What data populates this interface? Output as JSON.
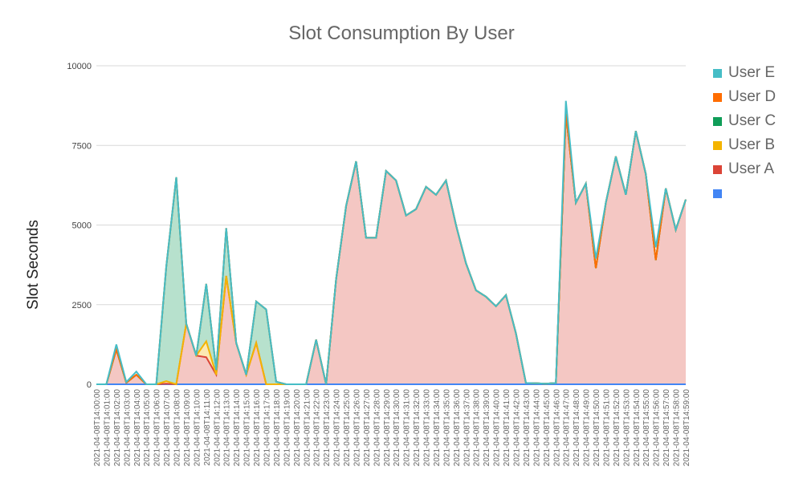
{
  "chart_data": {
    "type": "area",
    "stacked": true,
    "title": "Slot Consumption By User",
    "xlabel": "",
    "ylabel": "Slot Seconds",
    "ylim": [
      0,
      10000
    ],
    "yticks": [
      0,
      2500,
      5000,
      7500,
      10000
    ],
    "grid": true,
    "legend_position": "right",
    "categories": [
      "2021-04-08T14:00:00",
      "2021-04-08T14:01:00",
      "2021-04-08T14:02:00",
      "2021-04-08T14:03:00",
      "2021-04-08T14:04:00",
      "2021-04-08T14:05:00",
      "2021-04-08T14:06:00",
      "2021-04-08T14:07:00",
      "2021-04-08T14:08:00",
      "2021-04-08T14:09:00",
      "2021-04-08T14:10:00",
      "2021-04-08T14:11:00",
      "2021-04-08T14:12:00",
      "2021-04-08T14:13:00",
      "2021-04-08T14:14:00",
      "2021-04-08T14:15:00",
      "2021-04-08T14:16:00",
      "2021-04-08T14:17:00",
      "2021-04-08T14:18:00",
      "2021-04-08T14:19:00",
      "2021-04-08T14:20:00",
      "2021-04-08T14:21:00",
      "2021-04-08T14:22:00",
      "2021-04-08T14:23:00",
      "2021-04-08T14:24:00",
      "2021-04-08T14:25:00",
      "2021-04-08T14:26:00",
      "2021-04-08T14:27:00",
      "2021-04-08T14:28:00",
      "2021-04-08T14:29:00",
      "2021-04-08T14:30:00",
      "2021-04-08T14:31:00",
      "2021-04-08T14:32:00",
      "2021-04-08T14:33:00",
      "2021-04-08T14:34:00",
      "2021-04-08T14:35:00",
      "2021-04-08T14:36:00",
      "2021-04-08T14:37:00",
      "2021-04-08T14:38:00",
      "2021-04-08T14:39:00",
      "2021-04-08T14:40:00",
      "2021-04-08T14:41:00",
      "2021-04-08T14:42:00",
      "2021-04-08T14:43:00",
      "2021-04-08T14:44:00",
      "2021-04-08T14:45:00",
      "2021-04-08T14:46:00",
      "2021-04-08T14:47:00",
      "2021-04-08T14:48:00",
      "2021-04-08T14:49:00",
      "2021-04-08T14:50:00",
      "2021-04-08T14:51:00",
      "2021-04-08T14:52:00",
      "2021-04-08T14:53:00",
      "2021-04-08T14:54:00",
      "2021-04-08T14:55:00",
      "2021-04-08T14:56:00",
      "2021-04-08T14:57:00",
      "2021-04-08T14:58:00",
      "2021-04-08T14:59:00"
    ],
    "series": [
      {
        "name": "",
        "color": "#4285f4",
        "values": [
          0,
          0,
          0,
          0,
          0,
          0,
          0,
          0,
          0,
          0,
          0,
          0,
          0,
          0,
          0,
          0,
          0,
          0,
          0,
          0,
          0,
          0,
          0,
          0,
          0,
          0,
          0,
          0,
          0,
          0,
          0,
          0,
          0,
          0,
          0,
          0,
          0,
          0,
          0,
          0,
          0,
          0,
          0,
          0,
          0,
          0,
          0,
          0,
          0,
          0,
          0,
          0,
          0,
          0,
          0,
          0,
          0,
          0,
          0,
          0
        ]
      },
      {
        "name": "User A",
        "color": "#db4437",
        "fill": "#f4c7c3",
        "values": [
          0,
          0,
          1100,
          50,
          300,
          0,
          0,
          20,
          0,
          1900,
          900,
          850,
          300,
          3400,
          1300,
          300,
          1300,
          0,
          0,
          0,
          0,
          0,
          1400,
          0,
          3300,
          5600,
          7000,
          4600,
          4600,
          6700,
          6400,
          5300,
          5500,
          6200,
          5950,
          6400,
          5000,
          3800,
          2950,
          2750,
          2450,
          2800,
          1600,
          40,
          30,
          20,
          40,
          8500,
          5700,
          6300,
          3650,
          5700,
          7150,
          5950,
          7950,
          6600,
          3900,
          6150,
          4850,
          5800
        ]
      },
      {
        "name": "User B",
        "color": "#f4b400",
        "fill": "#fce8b2",
        "values": [
          0,
          0,
          0,
          0,
          0,
          0,
          0,
          80,
          0,
          0,
          0,
          500,
          0,
          0,
          0,
          0,
          0,
          0,
          0,
          0,
          0,
          0,
          0,
          0,
          0,
          0,
          0,
          0,
          0,
          0,
          0,
          0,
          0,
          0,
          0,
          0,
          0,
          0,
          0,
          0,
          0,
          0,
          0,
          0,
          0,
          0,
          0,
          0,
          0,
          0,
          0,
          0,
          0,
          0,
          0,
          0,
          0,
          0,
          0,
          0
        ]
      },
      {
        "name": "User C",
        "color": "#0f9d58",
        "fill": "#b7e1cd",
        "values": [
          0,
          0,
          0,
          0,
          0,
          0,
          0,
          3600,
          6500,
          0,
          0,
          1800,
          150,
          1500,
          0,
          0,
          1300,
          2350,
          80,
          0,
          0,
          0,
          0,
          0,
          0,
          0,
          0,
          0,
          0,
          0,
          0,
          0,
          0,
          0,
          0,
          0,
          0,
          0,
          0,
          0,
          0,
          0,
          0,
          0,
          0,
          0,
          0,
          0,
          0,
          0,
          0,
          0,
          0,
          0,
          0,
          0,
          0,
          0,
          0,
          0
        ]
      },
      {
        "name": "User D",
        "color": "#ff6d01",
        "values": [
          0,
          0,
          0,
          0,
          0,
          0,
          0,
          0,
          0,
          0,
          0,
          0,
          0,
          0,
          0,
          0,
          0,
          0,
          0,
          0,
          0,
          0,
          0,
          0,
          0,
          0,
          0,
          0,
          0,
          0,
          0,
          0,
          0,
          0,
          0,
          0,
          0,
          0,
          0,
          0,
          0,
          0,
          0,
          0,
          0,
          0,
          0,
          0,
          0,
          0,
          0,
          0,
          0,
          0,
          0,
          0,
          0,
          0,
          0,
          0
        ]
      },
      {
        "name": "User E",
        "color": "#46bdc6",
        "values": [
          0,
          0,
          150,
          20,
          100,
          0,
          0,
          0,
          0,
          0,
          0,
          0,
          0,
          0,
          0,
          0,
          0,
          0,
          0,
          0,
          0,
          0,
          0,
          0,
          0,
          0,
          0,
          0,
          0,
          0,
          0,
          0,
          0,
          0,
          0,
          0,
          0,
          0,
          0,
          0,
          0,
          0,
          0,
          0,
          0,
          0,
          0,
          400,
          0,
          0,
          300,
          0,
          0,
          0,
          0,
          0,
          400,
          0,
          0,
          0
        ]
      }
    ],
    "legend": [
      {
        "name": "User E",
        "color": "#46bdc6"
      },
      {
        "name": "User D",
        "color": "#ff6d01"
      },
      {
        "name": "User C",
        "color": "#0f9d58"
      },
      {
        "name": "User B",
        "color": "#f4b400"
      },
      {
        "name": "User A",
        "color": "#db4437"
      },
      {
        "name": "",
        "color": "#4285f4"
      }
    ]
  }
}
